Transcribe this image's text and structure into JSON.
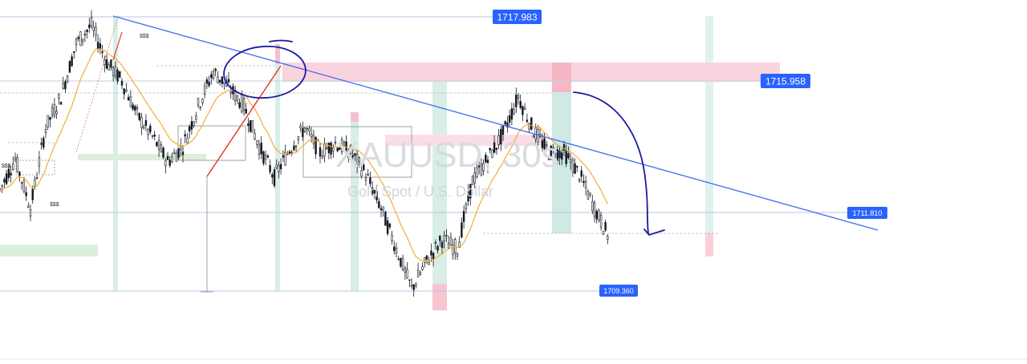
{
  "watermark": {
    "symbol": "XAUUSD, 30s",
    "description": "Gold Spot / U.S. Dollar"
  },
  "price_labels": [
    {
      "id": "high",
      "text": "1717.983",
      "value": 1717.983
    },
    {
      "id": "resistance",
      "text": "1715.958",
      "value": 1715.958
    },
    {
      "id": "mid",
      "text": "1711.810",
      "value": 1711.81
    },
    {
      "id": "low",
      "text": "1709.360",
      "value": 1709.36
    }
  ],
  "annotations": {
    "liquidity_1": "$$$",
    "liquidity_2": "$$$",
    "liquidity_3": "$$$"
  },
  "colors": {
    "candle": "#131722",
    "ma": "#f5a623",
    "trendline": "#2962ff",
    "hline": "#b8c5e6",
    "supply_zone": "#f8c8d4",
    "demand_zone": "#d6ecd8",
    "teal_column": "#cfe9e4",
    "pen": "#1a1aa0",
    "red_line": "#e53935",
    "tag_bg": "#2962ff"
  },
  "chart_data": {
    "type": "candlestick",
    "symbol": "XAUUSD",
    "timeframe": "30s",
    "series": [
      {
        "name": "XAUUSD close (approx.)",
        "values": [
          1712.6,
          1713.6,
          1712.0,
          1714.6,
          1715.6,
          1717.3,
          1717.9,
          1716.7,
          1716.1,
          1715.0,
          1714.3,
          1713.5,
          1714.0,
          1715.3,
          1716.4,
          1715.9,
          1715.3,
          1714.0,
          1713.0,
          1713.9,
          1714.6,
          1713.8,
          1714.1,
          1713.8,
          1713.1,
          1712.0,
          1710.7,
          1709.4,
          1710.3,
          1711.0,
          1710.7,
          1712.9,
          1713.6,
          1714.4,
          1715.6,
          1714.5,
          1713.8,
          1713.8,
          1713.1,
          1712.0,
          1711.0
        ]
      }
    ],
    "horizontal_levels": [
      1717.983,
      1715.958,
      1711.81,
      1709.36
    ],
    "ylim": [
      1708.9,
      1718.5
    ]
  }
}
